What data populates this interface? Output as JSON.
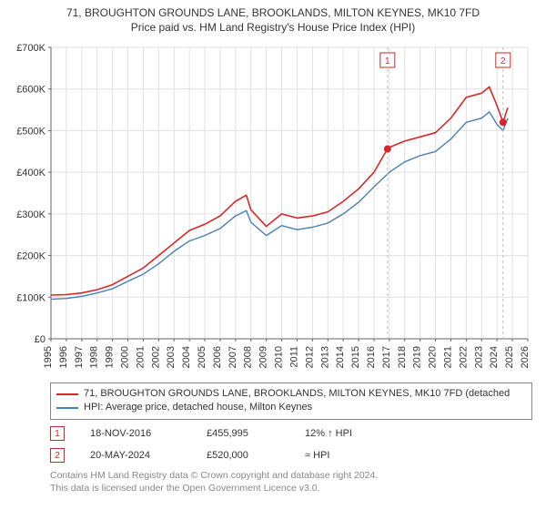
{
  "title": {
    "line1": "71, BROUGHTON GROUNDS LANE, BROOKLANDS, MILTON KEYNES, MK10 7FD",
    "line2": "Price paid vs. HM Land Registry's House Price Index (HPI)"
  },
  "chart": {
    "type": "line",
    "background_color": "#ffffff",
    "grid_color": "#e0e0e0",
    "axis_color": "#666666",
    "tick_font_size": 11,
    "xlim": [
      1995,
      2026
    ],
    "ylim": [
      0,
      700000
    ],
    "y_ticks": [
      0,
      100000,
      200000,
      300000,
      400000,
      500000,
      600000,
      700000
    ],
    "y_tick_labels": [
      "£0",
      "£100K",
      "£200K",
      "£300K",
      "£400K",
      "£500K",
      "£600K",
      "£700K"
    ],
    "x_ticks": [
      1995,
      1996,
      1997,
      1998,
      1999,
      2000,
      2001,
      2002,
      2003,
      2004,
      2005,
      2006,
      2007,
      2008,
      2009,
      2010,
      2011,
      2012,
      2013,
      2014,
      2015,
      2016,
      2017,
      2018,
      2019,
      2020,
      2021,
      2022,
      2023,
      2024,
      2025,
      2026
    ],
    "series": [
      {
        "name": "price_paid",
        "color": "#d62728",
        "width": 1.6,
        "points": [
          [
            1995,
            105000
          ],
          [
            1996,
            106000
          ],
          [
            1997,
            110000
          ],
          [
            1998,
            118000
          ],
          [
            1999,
            130000
          ],
          [
            2000,
            150000
          ],
          [
            2001,
            170000
          ],
          [
            2002,
            200000
          ],
          [
            2003,
            230000
          ],
          [
            2004,
            260000
          ],
          [
            2005,
            275000
          ],
          [
            2006,
            295000
          ],
          [
            2007,
            330000
          ],
          [
            2007.7,
            345000
          ],
          [
            2008,
            310000
          ],
          [
            2009,
            270000
          ],
          [
            2010,
            300000
          ],
          [
            2011,
            290000
          ],
          [
            2012,
            295000
          ],
          [
            2013,
            305000
          ],
          [
            2014,
            330000
          ],
          [
            2015,
            360000
          ],
          [
            2016,
            400000
          ],
          [
            2016.88,
            455995
          ],
          [
            2017,
            460000
          ],
          [
            2018,
            475000
          ],
          [
            2019,
            485000
          ],
          [
            2020,
            495000
          ],
          [
            2021,
            530000
          ],
          [
            2022,
            580000
          ],
          [
            2023,
            590000
          ],
          [
            2023.5,
            605000
          ],
          [
            2024,
            560000
          ],
          [
            2024.39,
            520000
          ],
          [
            2024.7,
            555000
          ]
        ]
      },
      {
        "name": "hpi",
        "color": "#4a7fb5",
        "width": 1.4,
        "points": [
          [
            1995,
            95000
          ],
          [
            1996,
            97000
          ],
          [
            1997,
            102000
          ],
          [
            1998,
            110000
          ],
          [
            1999,
            120000
          ],
          [
            2000,
            138000
          ],
          [
            2001,
            155000
          ],
          [
            2002,
            180000
          ],
          [
            2003,
            210000
          ],
          [
            2004,
            235000
          ],
          [
            2005,
            248000
          ],
          [
            2006,
            265000
          ],
          [
            2007,
            295000
          ],
          [
            2007.7,
            308000
          ],
          [
            2008,
            280000
          ],
          [
            2009,
            248000
          ],
          [
            2010,
            272000
          ],
          [
            2011,
            262000
          ],
          [
            2012,
            268000
          ],
          [
            2013,
            278000
          ],
          [
            2014,
            300000
          ],
          [
            2015,
            328000
          ],
          [
            2016,
            365000
          ],
          [
            2017,
            400000
          ],
          [
            2018,
            425000
          ],
          [
            2019,
            440000
          ],
          [
            2020,
            450000
          ],
          [
            2021,
            480000
          ],
          [
            2022,
            520000
          ],
          [
            2023,
            530000
          ],
          [
            2023.5,
            545000
          ],
          [
            2024,
            515000
          ],
          [
            2024.39,
            500000
          ],
          [
            2024.7,
            530000
          ]
        ]
      }
    ],
    "markers": [
      {
        "badge": "1",
        "x": 2016.88,
        "y": 455995,
        "color": "#d62728"
      },
      {
        "badge": "2",
        "x": 2024.39,
        "y": 520000,
        "color": "#d62728"
      }
    ],
    "marker_badge_border": "#d62728",
    "marker_badge_bg": "#ffffff",
    "marker_label_y_top": 62
  },
  "legend": {
    "items": [
      {
        "color": "#d62728",
        "label": "71, BROUGHTON GROUNDS LANE, BROOKLANDS, MILTON KEYNES, MK10 7FD (detached"
      },
      {
        "color": "#4a7fb5",
        "label": "HPI: Average price, detached house, Milton Keynes"
      }
    ]
  },
  "events": [
    {
      "badge": "1",
      "date": "18-NOV-2016",
      "price": "£455,995",
      "hpi": "12% ↑ HPI"
    },
    {
      "badge": "2",
      "date": "20-MAY-2024",
      "price": "£520,000",
      "hpi": "≈ HPI"
    }
  ],
  "footer": {
    "line1": "Contains HM Land Registry data © Crown copyright and database right 2024.",
    "line2": "This data is licensed under the Open Government Licence v3.0."
  }
}
